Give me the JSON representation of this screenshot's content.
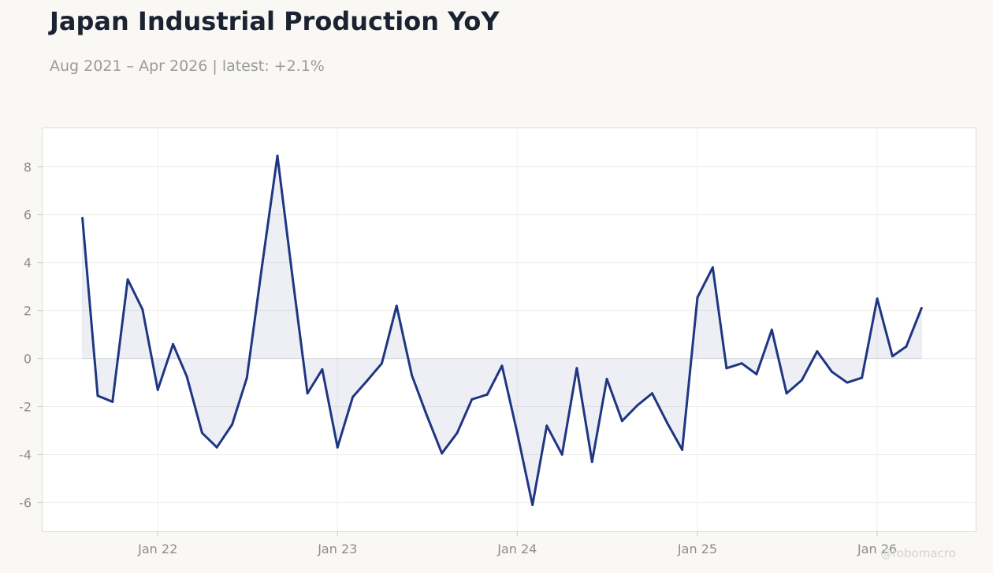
{
  "header": {
    "title": "Japan Industrial Production YoY",
    "subtitle": "Aug 2021 – Apr 2026 | latest: +2.1%"
  },
  "watermark": "@robomacro",
  "colors": {
    "line": "#1f3682",
    "fill": "#1f3682",
    "background": "#f9f8f5",
    "plot_background": "#ffffff",
    "grid": "#efefec",
    "frame": "#dedcd4"
  },
  "chart_data": {
    "type": "area",
    "title": "Japan Industrial Production YoY",
    "subtitle": "Aug 2021 – Apr 2026 | latest: +2.1%",
    "xlabel": "",
    "ylabel": "",
    "ylim": [
      -7.2,
      9.6
    ],
    "yticks": [
      -6,
      -4,
      -2,
      0,
      2,
      4,
      6,
      8
    ],
    "ytick_labels": [
      "-6",
      "-4",
      "-2",
      "0",
      "2",
      "4",
      "6",
      "8"
    ],
    "xticks": [
      "2022-01",
      "2023-01",
      "2024-01",
      "2025-01",
      "2026-01"
    ],
    "xtick_labels": [
      "Jan 22",
      "Jan 23",
      "Jan 24",
      "Jan 25",
      "Jan 26"
    ],
    "xlim": [
      "2021-05-12",
      "2026-07-20"
    ],
    "grid": true,
    "legend": "none",
    "series": [
      {
        "x": [
          "2021-08",
          "2021-09",
          "2021-10",
          "2021-11",
          "2021-12",
          "2022-01",
          "2022-02",
          "2022-03",
          "2022-04",
          "2022-05",
          "2022-06",
          "2022-07",
          "2022-08",
          "2022-09",
          "2022-10",
          "2022-11",
          "2022-12",
          "2023-01",
          "2023-02",
          "2023-03",
          "2023-04",
          "2023-05",
          "2023-06",
          "2023-07",
          "2023-08",
          "2023-09",
          "2023-10",
          "2023-11",
          "2023-12",
          "2024-01",
          "2024-02",
          "2024-03",
          "2024-04",
          "2024-05",
          "2024-06",
          "2024-07",
          "2024-08",
          "2024-09",
          "2024-10",
          "2024-11",
          "2024-12",
          "2025-01",
          "2025-02",
          "2025-03",
          "2025-04",
          "2025-05",
          "2025-06",
          "2025-07",
          "2025-08",
          "2025-09",
          "2025-10",
          "2025-11",
          "2025-12",
          "2026-01",
          "2026-02",
          "2026-03",
          "2026-04"
        ],
        "values": [
          5.85,
          -1.55,
          -1.8,
          3.3,
          2.05,
          -1.3,
          0.6,
          -0.75,
          -3.1,
          -3.7,
          -2.75,
          -0.8,
          3.9,
          8.45,
          3.5,
          -1.45,
          -0.45,
          -3.7,
          -1.6,
          -0.95,
          -0.2,
          2.2,
          -0.7,
          -2.35,
          -3.95,
          -3.1,
          -1.7,
          -1.5,
          -0.3,
          -3.1,
          -6.1,
          -2.8,
          -4.0,
          -0.4,
          -4.3,
          -0.85,
          -2.6,
          -1.95,
          -1.45,
          -2.7,
          -3.8,
          2.55,
          3.8,
          -0.4,
          -0.2,
          -0.65,
          1.2,
          -1.45,
          -0.9,
          0.3,
          -0.55,
          -1.0,
          -0.8,
          2.5,
          0.1,
          0.5,
          2.1
        ]
      }
    ]
  }
}
